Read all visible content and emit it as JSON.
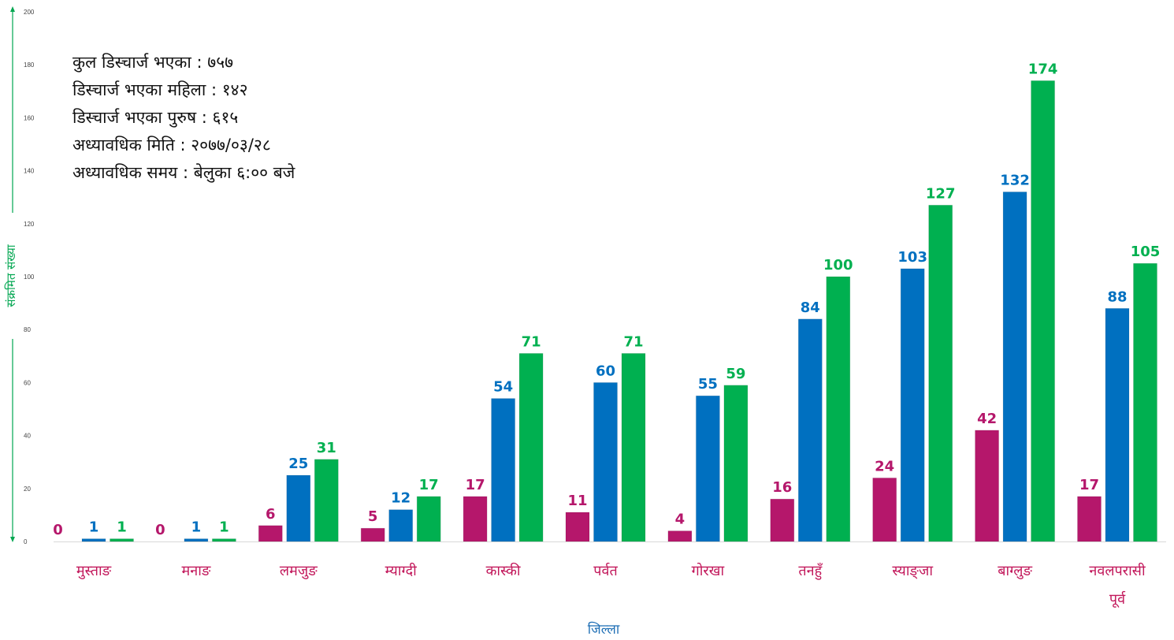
{
  "info_lines": [
    "कुल डिस्चार्ज भएका : ७५७",
    "डिस्चार्ज भएका महिला : १४२",
    "डिस्चार्ज भएका पुरुष : ६१५",
    "अध्यावधिक मिति : २०७७/०३/२८",
    "अध्यावधिक समय : बेलुका ६:०० बजे"
  ],
  "chart_data": {
    "type": "bar",
    "xlabel": "जिल्ला",
    "ylabel": "संक्रमित संख्या",
    "ylim": [
      0,
      200
    ],
    "yticks": [
      0,
      20,
      40,
      60,
      80,
      100,
      120,
      140,
      160,
      180,
      200
    ],
    "categories": [
      [
        "मुस्ताङ"
      ],
      [
        "मनाङ"
      ],
      [
        "लमजुङ"
      ],
      [
        "म्याग्दी"
      ],
      [
        "कास्की"
      ],
      [
        "पर्वत"
      ],
      [
        "गोरखा"
      ],
      [
        "तनहुँ"
      ],
      [
        "स्याङ्जा"
      ],
      [
        "बाग्लुङ"
      ],
      [
        "नवलपरासी",
        "पूर्व"
      ]
    ],
    "series": [
      {
        "values": [
          0,
          0,
          6,
          5,
          17,
          11,
          4,
          16,
          24,
          42,
          17
        ],
        "color": "#b5176b"
      },
      {
        "values": [
          1,
          1,
          25,
          12,
          54,
          60,
          55,
          84,
          103,
          132,
          88
        ],
        "color": "#0070c0"
      },
      {
        "values": [
          1,
          1,
          31,
          17,
          71,
          71,
          59,
          100,
          127,
          174,
          105
        ],
        "color": "#00b050"
      }
    ],
    "axis_color": "#00a650",
    "category_label_color": "#c2185b",
    "xlabel_color": "#1f6fb5"
  }
}
